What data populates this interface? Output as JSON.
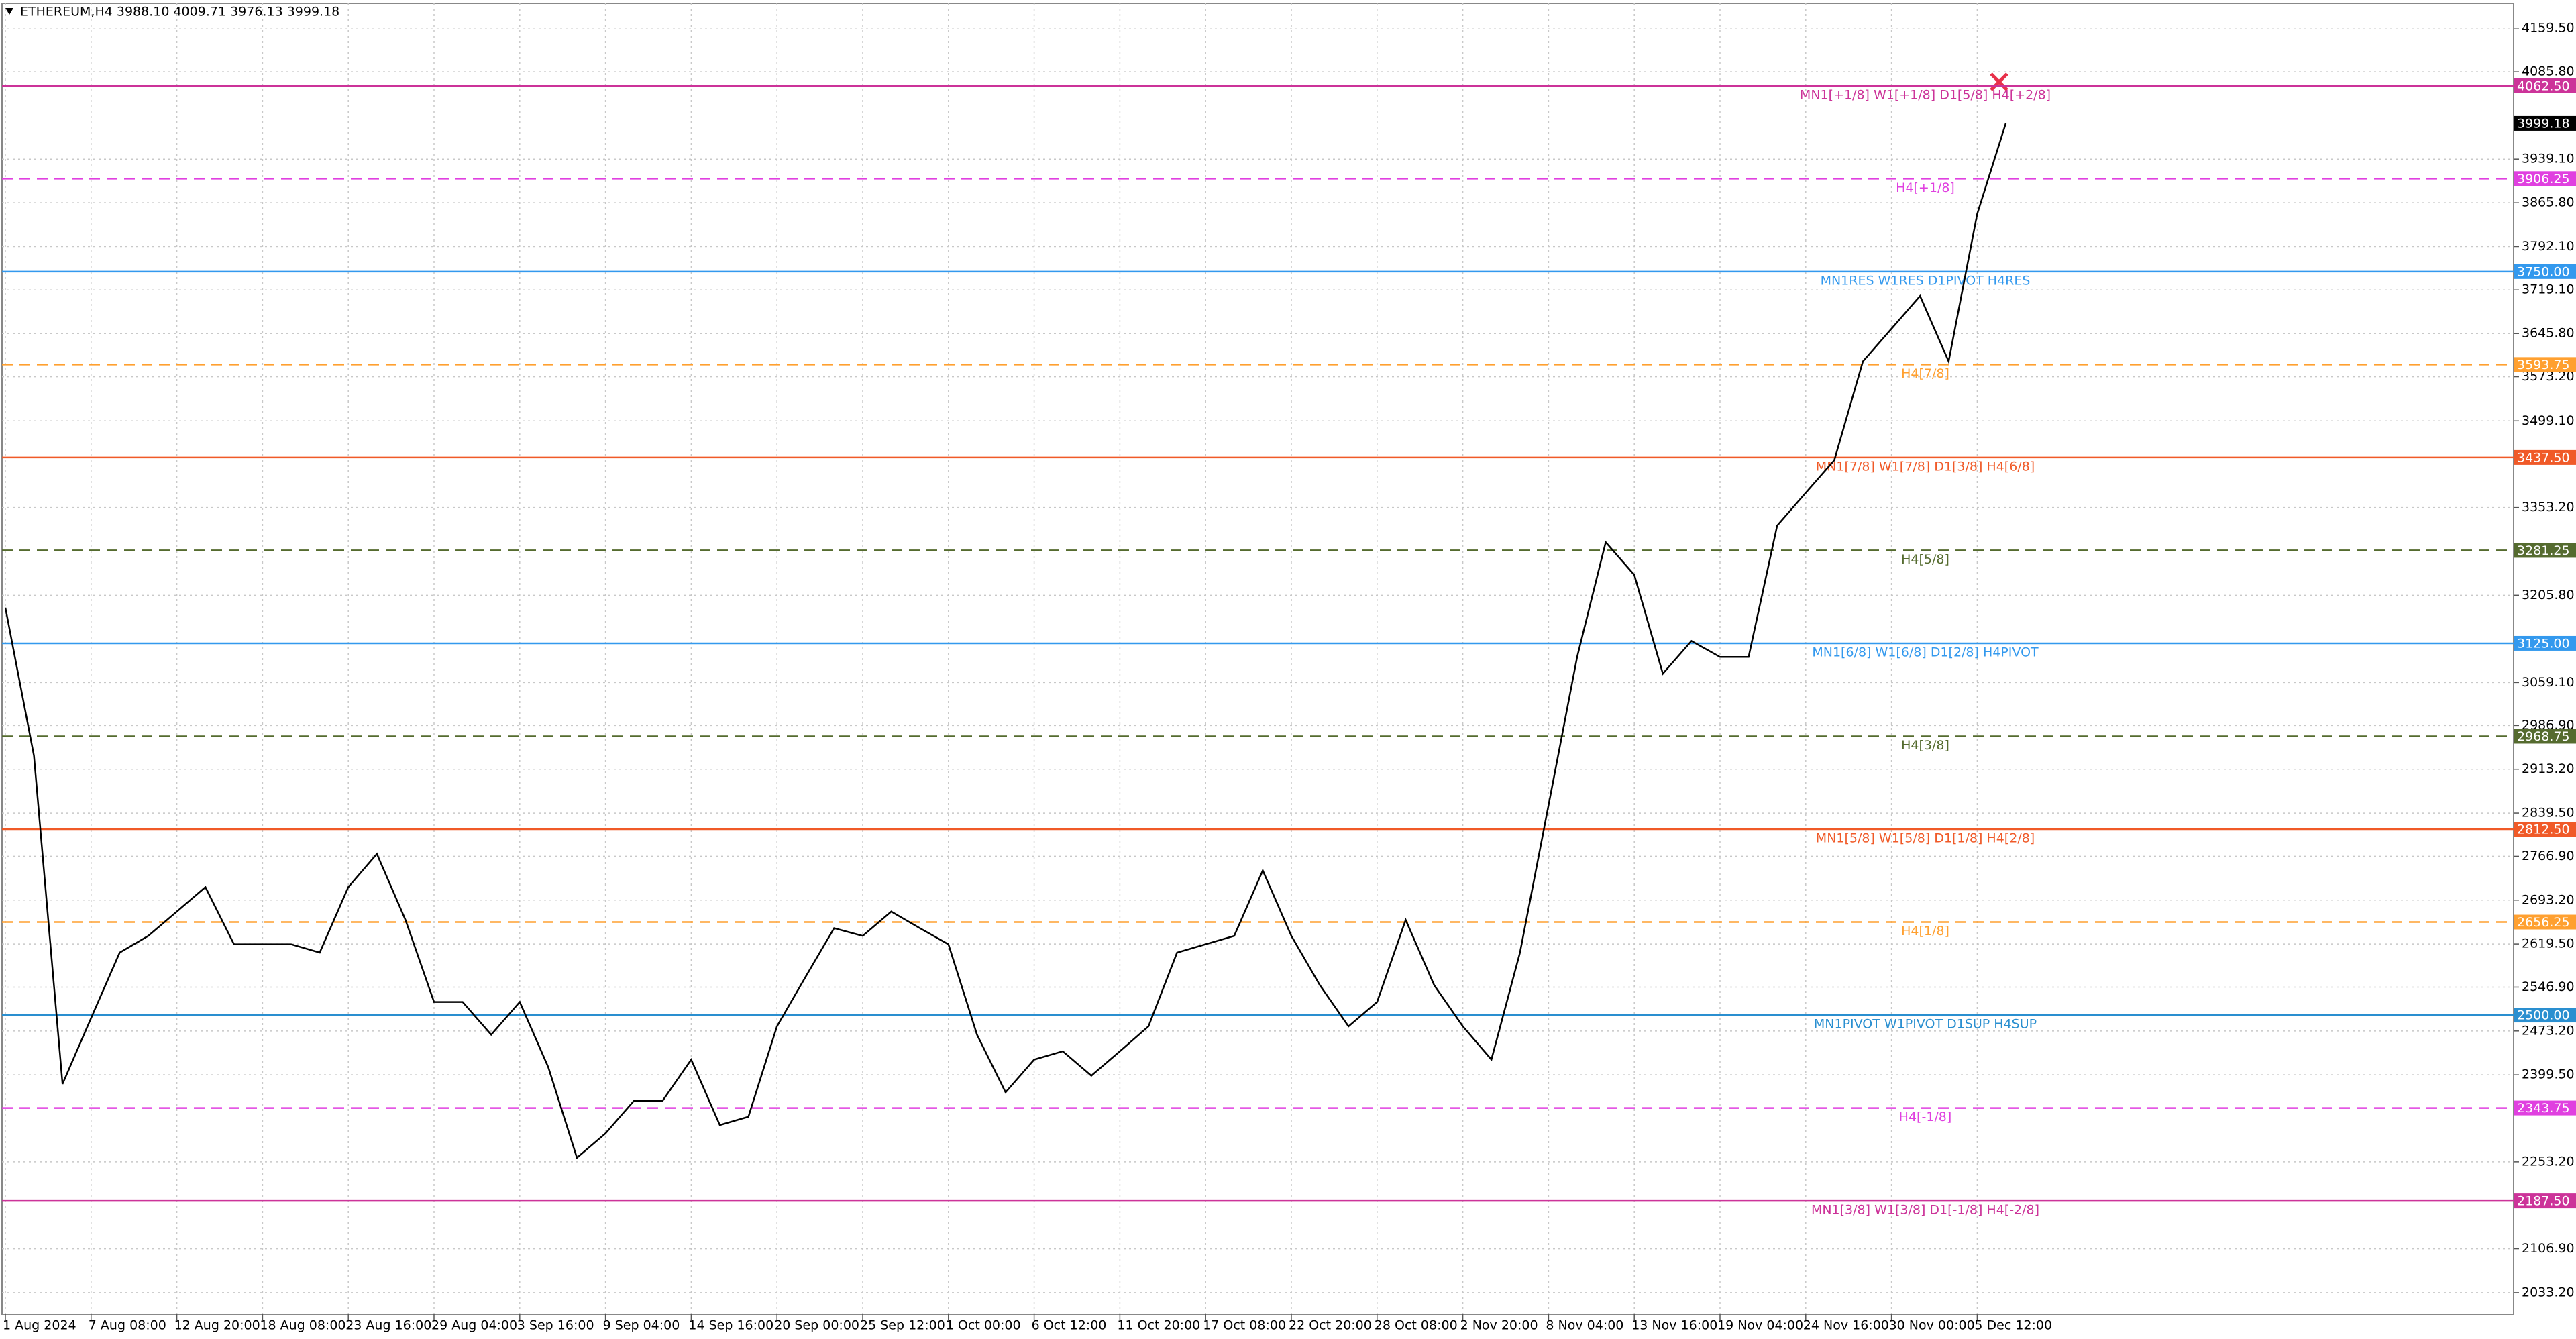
{
  "chart_data": {
    "type": "line",
    "title": "ETHEREUM,H4  3988.10 4009.71 3976.13 3999.18",
    "categories": [
      "1 Aug 2024",
      null,
      null,
      "7 Aug 08:00",
      null,
      null,
      "12 Aug 20:00",
      null,
      null,
      "18 Aug 08:00",
      null,
      null,
      "23 Aug 16:00",
      null,
      null,
      "29 Aug 04:00",
      null,
      null,
      "3 Sep 16:00",
      null,
      null,
      "9 Sep 04:00",
      null,
      null,
      "14 Sep 16:00",
      null,
      null,
      "20 Sep 00:00",
      null,
      null,
      "25 Sep 12:00",
      null,
      null,
      "1 Oct 00:00",
      null,
      null,
      "6 Oct 12:00",
      null,
      null,
      "11 Oct 20:00",
      null,
      null,
      "17 Oct 08:00",
      null,
      null,
      "22 Oct 20:00",
      null,
      null,
      "28 Oct 08:00",
      null,
      null,
      "2 Nov 20:00",
      null,
      null,
      "8 Nov 04:00",
      null,
      null,
      "13 Nov 16:00",
      null,
      null,
      "19 Nov 04:00",
      null,
      null,
      "24 Nov 16:00",
      null,
      null,
      "30 Nov 00:00",
      null,
      null,
      "5 Dec 12:00",
      null
    ],
    "values": [
      3185,
      2936,
      2384,
      2495,
      2605,
      2633,
      2674,
      2715,
      2619,
      2619,
      2619,
      2605,
      2715,
      2771,
      2660,
      2522,
      2522,
      2467,
      2522,
      2412,
      2260,
      2301,
      2356,
      2356,
      2425,
      2315,
      2329,
      2481,
      2564,
      2646,
      2633,
      2674,
      2646,
      2619,
      2467,
      2370,
      2425,
      2439,
      2398,
      2439,
      2481,
      2605,
      2619,
      2633,
      2743,
      2633,
      2550,
      2481,
      2522,
      2660,
      2550,
      2481,
      2425,
      2605,
      2853,
      3102,
      3295,
      3240,
      3074,
      3129,
      3102,
      3102,
      3323,
      3378,
      3433,
      3599,
      3654,
      3709,
      3599,
      3847,
      3999.18
    ],
    "color": "#000000",
    "ylim": [
      1997,
      4201
    ],
    "yticks": [
      {
        "value": 4159.5,
        "label": "4159.50"
      },
      {
        "value": 4085.8,
        "label": "4085.80"
      },
      {
        "value": 3939.1,
        "label": "3939.10"
      },
      {
        "value": 3865.8,
        "label": "3865.80"
      },
      {
        "value": 3792.1,
        "label": "3792.10"
      },
      {
        "value": 3719.1,
        "label": "3719.10"
      },
      {
        "value": 3645.8,
        "label": "3645.80"
      },
      {
        "value": 3573.2,
        "label": "3573.20"
      },
      {
        "value": 3499.1,
        "label": "3499.10"
      },
      {
        "value": 3353.2,
        "label": "3353.20"
      },
      {
        "value": 3205.8,
        "label": "3205.80"
      },
      {
        "value": 3059.1,
        "label": "3059.10"
      },
      {
        "value": 2986.9,
        "label": "2986.90"
      },
      {
        "value": 2913.2,
        "label": "2913.20"
      },
      {
        "value": 2839.5,
        "label": "2839.50"
      },
      {
        "value": 2766.9,
        "label": "2766.90"
      },
      {
        "value": 2693.2,
        "label": "2693.20"
      },
      {
        "value": 2619.5,
        "label": "2619.50"
      },
      {
        "value": 2546.9,
        "label": "2546.90"
      },
      {
        "value": 2473.2,
        "label": "2473.20"
      },
      {
        "value": 2399.5,
        "label": "2399.50"
      },
      {
        "value": 2253.2,
        "label": "2253.20"
      },
      {
        "value": 2106.9,
        "label": "2106.90"
      },
      {
        "value": 2033.2,
        "label": "2033.20"
      }
    ],
    "grid": true,
    "last_price": {
      "value": 3999.18,
      "label": "3999.18"
    },
    "levels": [
      {
        "value": 4062.5,
        "tag": "4062.50",
        "text": "MN1[+1/8] W1[+1/8] D1[5/8] H4[+2/8]",
        "color": "#cc3399",
        "dashed": false
      },
      {
        "value": 3906.25,
        "tag": "3906.25",
        "text": "H4[+1/8]",
        "color": "#e040e0",
        "dashed": true
      },
      {
        "value": 3750,
        "tag": "3750.00",
        "text": "MN1RES W1RES D1PIVOT H4RES",
        "color": "#3399ee",
        "dashed": false
      },
      {
        "value": 3593.75,
        "tag": "3593.75",
        "text": "H4[7/8]",
        "color": "#ffa030",
        "dashed": true
      },
      {
        "value": 3437.5,
        "tag": "3437.50",
        "text": "MN1[7/8] W1[7/8] D1[3/8] H4[6/8]",
        "color": "#f05a28",
        "dashed": false
      },
      {
        "value": 3281.25,
        "tag": "3281.25",
        "text": "H4[5/8]",
        "color": "#556b2f",
        "dashed": true
      },
      {
        "value": 3125,
        "tag": "3125.00",
        "text": "MN1[6/8] W1[6/8] D1[2/8] H4PIVOT",
        "color": "#3399ee",
        "dashed": false
      },
      {
        "value": 2968.75,
        "tag": "2968.75",
        "text": "H4[3/8]",
        "color": "#556b2f",
        "dashed": true
      },
      {
        "value": 2812.5,
        "tag": "2812.50",
        "text": "MN1[5/8] W1[5/8] D1[1/8] H4[2/8]",
        "color": "#f05a28",
        "dashed": false
      },
      {
        "value": 2656.25,
        "tag": "2656.25",
        "text": "H4[1/8]",
        "color": "#ffa030",
        "dashed": true
      },
      {
        "value": 2500,
        "tag": "2500.00",
        "text": "MN1PIVOT W1PIVOT D1SUP H4SUP",
        "color": "#2a8fd0",
        "dashed": false
      },
      {
        "value": 2343.75,
        "tag": "2343.75",
        "text": "H4[-1/8]",
        "color": "#e040e0",
        "dashed": true
      },
      {
        "value": 2187.5,
        "tag": "2187.50",
        "text": "MN1[3/8] W1[3/8] D1[-1/8] H4[-2/8]",
        "color": "#cc3399",
        "dashed": false
      }
    ]
  }
}
